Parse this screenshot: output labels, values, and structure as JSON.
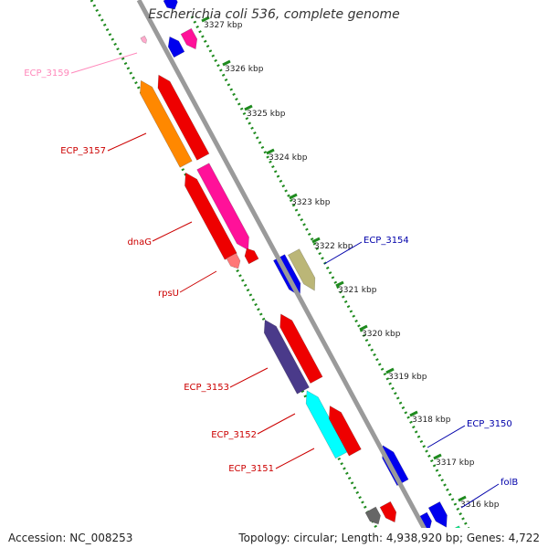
{
  "title": "Escherichia coli 536, complete genome",
  "accession": "Accession: NC_008253",
  "summary": "Topology: circular; Length: 4,938,920 bp; Genes: 4,722",
  "colors": {
    "backbone": "#9a9a9a",
    "tick": "#1e8a1e",
    "label_red": "#cc0000",
    "label_blue": "#0000aa",
    "label_pink": "#ff88bb",
    "text": "#222222"
  },
  "scale": {
    "unit": "kbp",
    "ticks": [
      "3316 kbp",
      "3317 kbp",
      "3318 kbp",
      "3319 kbp",
      "3320 kbp",
      "3321 kbp",
      "3322 kbp",
      "3323 kbp",
      "3324 kbp",
      "3325 kbp",
      "3326 kbp",
      "3327 kbp"
    ]
  },
  "labels": [
    {
      "text": "ECP_3159",
      "color": "pink",
      "side": "left"
    },
    {
      "text": "ECP_3157",
      "color": "red",
      "side": "left"
    },
    {
      "text": "dnaG",
      "color": "red",
      "side": "left"
    },
    {
      "text": "rpsU",
      "color": "red",
      "side": "left"
    },
    {
      "text": "ECP_3153",
      "color": "red",
      "side": "left"
    },
    {
      "text": "ECP_3152",
      "color": "red",
      "side": "left"
    },
    {
      "text": "ECP_3151",
      "color": "red",
      "side": "left"
    },
    {
      "text": "ECP_3154",
      "color": "blue",
      "side": "right"
    },
    {
      "text": "ECP_3150",
      "color": "blue",
      "side": "right"
    },
    {
      "text": "folB",
      "color": "blue",
      "side": "right"
    }
  ],
  "features": [
    {
      "name": "ecp_3159-feature",
      "color": "#ffaacc"
    },
    {
      "name": "ecp_3157-feature",
      "color": "#ff8800"
    },
    {
      "name": "ecp_3157-neighbor",
      "color": "#ee0000"
    },
    {
      "name": "dnag-feature",
      "color": "#ee0000"
    },
    {
      "name": "dnag-neighbor",
      "color": "#ff1199"
    },
    {
      "name": "rpsu-feature",
      "color": "#ff7777"
    },
    {
      "name": "rpsu-neighbor",
      "color": "#ee0000"
    },
    {
      "name": "ecp_3154-feature",
      "color": "#bbb677"
    },
    {
      "name": "ecp_3154-neighbor",
      "color": "#0000ee"
    },
    {
      "name": "ecp_3153-feature",
      "color": "#4a3a8a"
    },
    {
      "name": "ecp_3153-neighbor",
      "color": "#ee0000"
    },
    {
      "name": "ecp_3152-feature",
      "color": "#00ffff"
    },
    {
      "name": "ecp_3152-neighbor",
      "color": "#ee0000"
    },
    {
      "name": "ecp_3150-feature",
      "color": "#0000ee"
    },
    {
      "name": "folb-feature",
      "color": "#0000ee"
    }
  ]
}
